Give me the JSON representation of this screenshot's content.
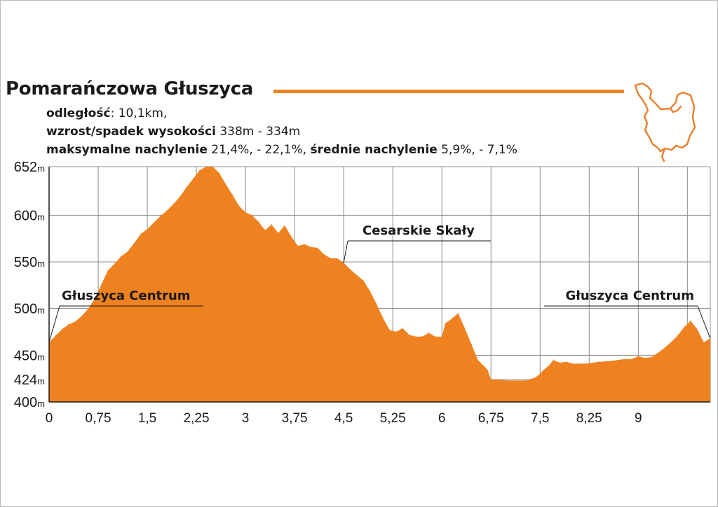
{
  "header": {
    "title": "Pomarańczowa Głuszyca",
    "line1_label": "odległość",
    "line1_value": ": 10,1km,",
    "line2_label": "wzrost/spadek wysokości",
    "line2_value": " 338m - 334m",
    "line3_label1": "maksymalne nachylenie",
    "line3_value1": " 21,4%, - 22,1%, ",
    "line3_label2": "średnie nachylenie",
    "line3_value2": " 5,9%, - 7,1%"
  },
  "colors": {
    "accent": "#ef8220",
    "route_map": "#ec7f2c",
    "grid": "#8c8c8c"
  },
  "chart_data": {
    "type": "area",
    "title": "",
    "xlabel": "",
    "ylabel": "",
    "x_ticks": [
      {
        "value": 0,
        "label": "0"
      },
      {
        "value": 0.75,
        "label": "0,75"
      },
      {
        "value": 1.5,
        "label": "1,5"
      },
      {
        "value": 2.25,
        "label": "2,25"
      },
      {
        "value": 3,
        "label": "3"
      },
      {
        "value": 3.75,
        "label": "3,75"
      },
      {
        "value": 4.5,
        "label": "4,5"
      },
      {
        "value": 5.25,
        "label": "5,25"
      },
      {
        "value": 6,
        "label": "6"
      },
      {
        "value": 6.75,
        "label": "6,75"
      },
      {
        "value": 7.5,
        "label": "7,5"
      },
      {
        "value": 8.25,
        "label": "8,25"
      },
      {
        "value": 9,
        "label": "9"
      }
    ],
    "y_ticks": [
      {
        "value": 652,
        "label": "652",
        "unit": "m"
      },
      {
        "value": 600,
        "label": "600",
        "unit": "m"
      },
      {
        "value": 550,
        "label": "550",
        "unit": "m"
      },
      {
        "value": 500,
        "label": "500",
        "unit": "m"
      },
      {
        "value": 450,
        "label": "450",
        "unit": "m"
      },
      {
        "value": 424,
        "label": "424",
        "unit": "m"
      },
      {
        "value": 400,
        "label": "400",
        "unit": "m"
      }
    ],
    "xlim": [
      0,
      10.1
    ],
    "ylim": [
      400,
      652
    ],
    "grid": true,
    "series": [
      {
        "color": "#ef8220",
        "points": [
          [
            0,
            464
          ],
          [
            0.1,
            471
          ],
          [
            0.2,
            478
          ],
          [
            0.3,
            483
          ],
          [
            0.4,
            486
          ],
          [
            0.5,
            492
          ],
          [
            0.6,
            500
          ],
          [
            0.7,
            511
          ],
          [
            0.8,
            526
          ],
          [
            0.9,
            541
          ],
          [
            1.0,
            548
          ],
          [
            1.1,
            556
          ],
          [
            1.2,
            561
          ],
          [
            1.3,
            570
          ],
          [
            1.4,
            580
          ],
          [
            1.5,
            585
          ],
          [
            1.6,
            592
          ],
          [
            1.7,
            599
          ],
          [
            1.8,
            605
          ],
          [
            1.9,
            612
          ],
          [
            2.0,
            620
          ],
          [
            2.1,
            630
          ],
          [
            2.2,
            639
          ],
          [
            2.3,
            648
          ],
          [
            2.4,
            652
          ],
          [
            2.5,
            652
          ],
          [
            2.6,
            645
          ],
          [
            2.7,
            633
          ],
          [
            2.8,
            622
          ],
          [
            2.9,
            610
          ],
          [
            3.0,
            603
          ],
          [
            3.1,
            600
          ],
          [
            3.2,
            593
          ],
          [
            3.3,
            584
          ],
          [
            3.4,
            590
          ],
          [
            3.5,
            581
          ],
          [
            3.6,
            589
          ],
          [
            3.7,
            577
          ],
          [
            3.8,
            567
          ],
          [
            3.9,
            569
          ],
          [
            4.0,
            566
          ],
          [
            4.1,
            565
          ],
          [
            4.2,
            558
          ],
          [
            4.3,
            554
          ],
          [
            4.4,
            554
          ],
          [
            4.5,
            549
          ],
          [
            4.6,
            542
          ],
          [
            4.7,
            536
          ],
          [
            4.8,
            530
          ],
          [
            4.9,
            519
          ],
          [
            5.0,
            505
          ],
          [
            5.1,
            490
          ],
          [
            5.2,
            477
          ],
          [
            5.3,
            475
          ],
          [
            5.4,
            479
          ],
          [
            5.5,
            472
          ],
          [
            5.6,
            470
          ],
          [
            5.7,
            470
          ],
          [
            5.8,
            474
          ],
          [
            5.9,
            470
          ],
          [
            6.0,
            470
          ],
          [
            6.05,
            484
          ],
          [
            6.15,
            489
          ],
          [
            6.25,
            495
          ],
          [
            6.35,
            479
          ],
          [
            6.45,
            462
          ],
          [
            6.55,
            445
          ],
          [
            6.65,
            438
          ],
          [
            6.7,
            434
          ],
          [
            6.75,
            424
          ],
          [
            6.85,
            424
          ],
          [
            7.0,
            423
          ],
          [
            7.15,
            423
          ],
          [
            7.3,
            423
          ],
          [
            7.45,
            427
          ],
          [
            7.55,
            434
          ],
          [
            7.65,
            440
          ],
          [
            7.7,
            445
          ],
          [
            7.8,
            442
          ],
          [
            7.9,
            443
          ],
          [
            8.0,
            441
          ],
          [
            8.2,
            441
          ],
          [
            8.4,
            443
          ],
          [
            8.6,
            444
          ],
          [
            8.8,
            446
          ],
          [
            8.9,
            446
          ],
          [
            9.0,
            449
          ],
          [
            9.1,
            447
          ],
          [
            9.2,
            448
          ],
          [
            9.35,
            455
          ],
          [
            9.5,
            464
          ],
          [
            9.6,
            471
          ],
          [
            9.7,
            480
          ],
          [
            9.8,
            487
          ],
          [
            9.9,
            478
          ],
          [
            10.0,
            464
          ],
          [
            10.1,
            468
          ]
        ]
      }
    ],
    "annotations": [
      {
        "label": "Głuszyca Centrum",
        "x": 0,
        "y": 464,
        "text_anchor": "start",
        "pointer_side": "left"
      },
      {
        "label": "Cesarskie Skały",
        "x": 4.5,
        "y": 549,
        "text_anchor": "middle",
        "pointer_side": "left"
      },
      {
        "label": "Głuszyca Centrum",
        "x": 10.1,
        "y": 468,
        "text_anchor": "end",
        "pointer_side": "right"
      }
    ]
  }
}
